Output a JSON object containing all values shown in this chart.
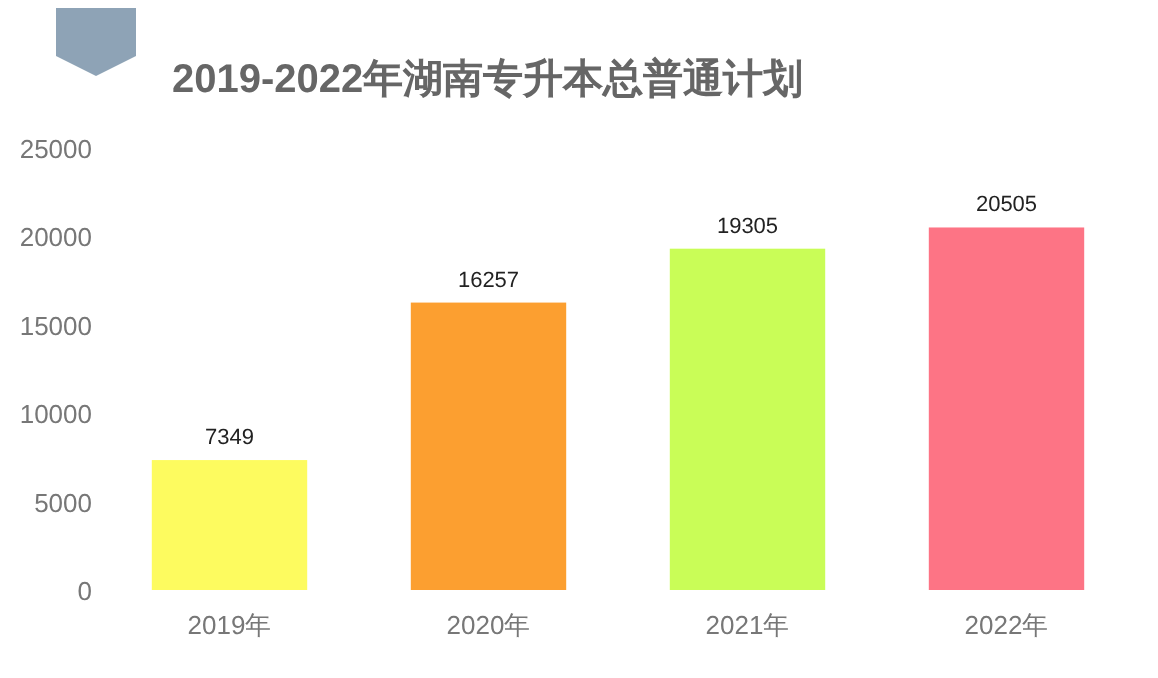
{
  "chart_data": {
    "type": "bar",
    "title": "2019-2022年湖南专升本总普通计划",
    "categories": [
      "2019年",
      "2020年",
      "2021年",
      "2022年"
    ],
    "values": [
      7349,
      16257,
      19305,
      20505
    ],
    "colors": [
      "#fdfb5f",
      "#fc9f30",
      "#c9fd57",
      "#fd7485"
    ],
    "ylim": [
      0,
      25000
    ],
    "yticks": [
      0,
      5000,
      10000,
      15000,
      20000,
      25000
    ],
    "data_labels": true,
    "grid": false
  }
}
